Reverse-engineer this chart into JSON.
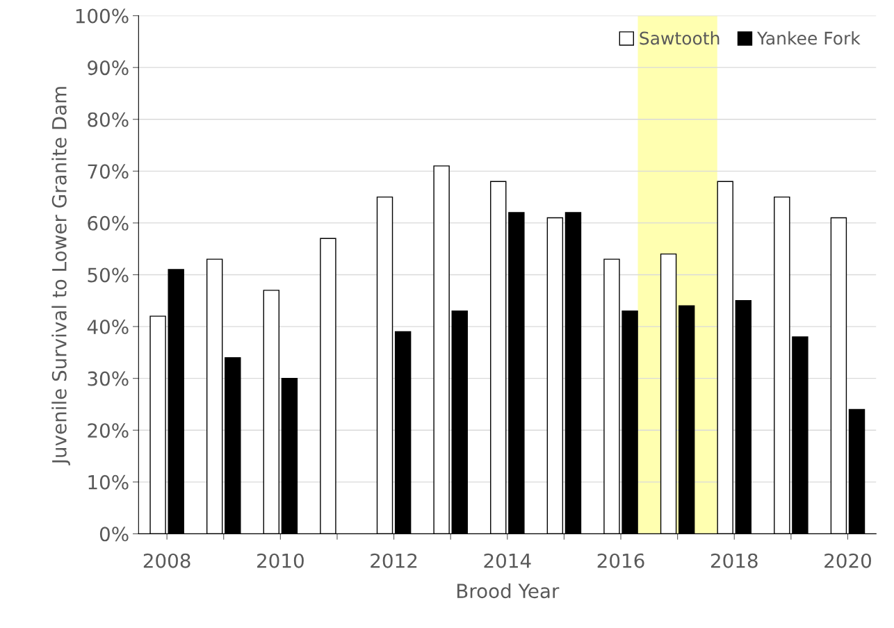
{
  "chart_data": {
    "type": "bar",
    "xlabel": "Brood Year",
    "ylabel": "Juvenile Survival to Lower Granite Dam",
    "x": [
      2008,
      2009,
      2010,
      2011,
      2012,
      2013,
      2014,
      2015,
      2016,
      2017,
      2018,
      2019,
      2020
    ],
    "series": [
      {
        "name": "Sawtooth",
        "color": "#ffffff",
        "values": [
          42,
          53,
          47,
          57,
          65,
          71,
          68,
          61,
          53,
          54,
          68,
          65,
          61
        ]
      },
      {
        "name": "Yankee Fork",
        "color": "#000000",
        "values": [
          51,
          34,
          30,
          null,
          39,
          43,
          62,
          62,
          43,
          44,
          45,
          38,
          24
        ]
      }
    ],
    "xlim": [
      2007.5,
      2020.5
    ],
    "xticks": [
      2008,
      {
        "value": 2009,
        "label": null
      },
      2010,
      {
        "value": 2011,
        "label": null
      },
      2012,
      {
        "value": 2013,
        "label": null
      },
      2014,
      {
        "value": 2015,
        "label": null
      },
      2016,
      {
        "value": 2017,
        "label": null
      },
      2018,
      {
        "value": 2019,
        "label": null
      },
      2020
    ],
    "ylim": [
      0,
      100
    ],
    "yticks": [
      {
        "value": 0,
        "label": "0%"
      },
      {
        "value": 10,
        "label": "10%"
      },
      {
        "value": 20,
        "label": "20%"
      },
      {
        "value": 30,
        "label": "30%"
      },
      {
        "value": 40,
        "label": "40%"
      },
      {
        "value": 50,
        "label": "50%"
      },
      {
        "value": 60,
        "label": "60%"
      },
      {
        "value": 70,
        "label": "70%"
      },
      {
        "value": 80,
        "label": "80%"
      },
      {
        "value": 90,
        "label": "90%"
      },
      {
        "value": 100,
        "label": "100%"
      }
    ],
    "bands": [
      {
        "axis": "x",
        "from": 2016.3,
        "to": 2017.7,
        "color": "#ffffb0"
      }
    ],
    "grid": "y",
    "legend": "top right"
  }
}
